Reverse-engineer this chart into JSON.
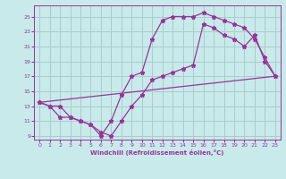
{
  "xlabel": "Windchill (Refroidissement éolien,°C)",
  "bg_color": "#c8eaea",
  "grid_color": "#aacccc",
  "line_color": "#993399",
  "xlim": [
    -0.5,
    23.5
  ],
  "ylim": [
    8.5,
    26.5
  ],
  "xticks": [
    0,
    1,
    2,
    3,
    4,
    5,
    6,
    7,
    8,
    9,
    10,
    11,
    12,
    13,
    14,
    15,
    16,
    17,
    18,
    19,
    20,
    21,
    22,
    23
  ],
  "yticks": [
    9,
    11,
    13,
    15,
    17,
    19,
    21,
    23,
    25
  ],
  "line1_x": [
    0,
    1,
    2,
    3,
    4,
    5,
    6,
    7,
    8,
    9,
    10,
    11,
    12,
    13,
    14,
    15,
    16,
    17,
    18,
    19,
    20,
    21,
    22,
    23
  ],
  "line1_y": [
    13.5,
    13.0,
    13.0,
    11.5,
    11.0,
    10.5,
    9.0,
    11.0,
    14.5,
    17.0,
    17.5,
    22.0,
    24.5,
    25.0,
    25.0,
    25.0,
    25.5,
    25.0,
    24.5,
    24.0,
    23.5,
    22.0,
    19.5,
    17.0
  ],
  "line2_x": [
    0,
    1,
    2,
    3,
    4,
    5,
    6,
    7,
    8,
    9,
    10,
    11,
    12,
    13,
    14,
    15,
    16,
    17,
    18,
    19,
    20,
    21,
    22,
    23
  ],
  "line2_y": [
    13.5,
    13.0,
    11.5,
    11.5,
    11.0,
    10.5,
    9.5,
    9.0,
    11.0,
    13.0,
    14.5,
    16.5,
    17.0,
    17.5,
    18.0,
    18.5,
    24.0,
    23.5,
    22.5,
    22.0,
    21.0,
    22.5,
    19.0,
    17.0
  ],
  "line3_x": [
    0,
    23
  ],
  "line3_y": [
    13.5,
    17.0
  ]
}
